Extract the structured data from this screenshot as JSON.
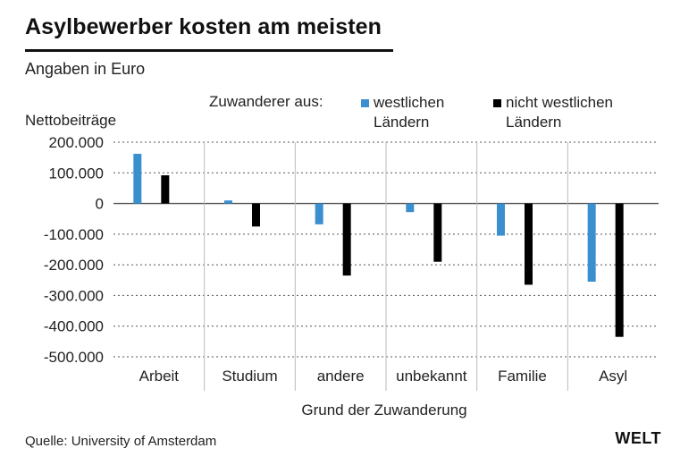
{
  "header": {
    "title": "Asylbewerber kosten am meisten",
    "subtitle": "Angaben in Euro"
  },
  "legend": {
    "title": "Zuwanderer aus:",
    "items": [
      {
        "label": "westlichen Ländern",
        "color": "#3a8fcf"
      },
      {
        "label": "nicht westlichen Ländern",
        "color": "#000000"
      }
    ]
  },
  "footer": {
    "source": "Quelle: University of Amsterdam",
    "brand": "WELT"
  },
  "chart_data": {
    "type": "bar",
    "ylabel": "Nettobeiträge",
    "xlabel": "Grund der Zuwanderung",
    "categories": [
      "Arbeit",
      "Studium",
      "andere",
      "unbekannt",
      "Familie",
      "Asyl"
    ],
    "series": [
      {
        "name": "westlichen Ländern",
        "color": "#3a8fcf",
        "values": [
          162000,
          10000,
          -68000,
          -28000,
          -105000,
          -255000
        ]
      },
      {
        "name": "nicht westlichen Ländern",
        "color": "#000000",
        "values": [
          92000,
          -75000,
          -235000,
          -190000,
          -265000,
          -435000
        ]
      }
    ],
    "ylim": [
      -500000,
      200000
    ],
    "yticks": [
      200000,
      100000,
      0,
      -100000,
      -200000,
      -300000,
      -400000,
      -500000
    ],
    "ytick_labels": [
      "200.000",
      "100.000",
      "0",
      "-100.000",
      "-200.000",
      "-300.000",
      "-400.000",
      "-500.000"
    ],
    "grid": true,
    "legend_position": "top"
  }
}
